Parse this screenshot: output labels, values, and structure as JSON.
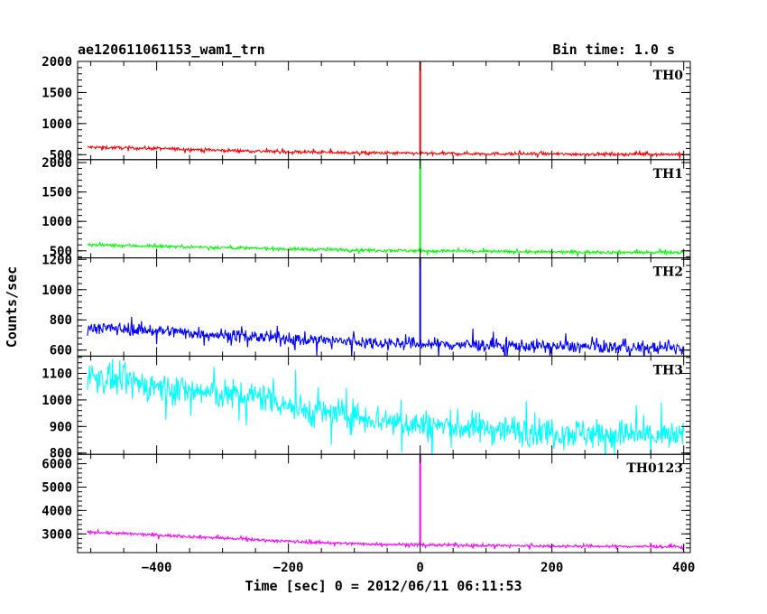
{
  "header": {
    "title": "ae120611061153_wam1_trn",
    "bin_time": "Bin time: 1.0 s"
  },
  "chart_data": {
    "type": "line",
    "xlabel": "Time [sec] 0 = 2012/06/11 06:11:53",
    "ylabel": "Counts/sec",
    "xlim": [
      -520,
      410
    ],
    "xticks": [
      -400,
      -200,
      0,
      200,
      400
    ],
    "x_tick_labels": [
      "−400",
      "−200",
      "0",
      "200",
      "400"
    ],
    "x_range": [
      -505,
      400
    ],
    "trigger_time": 0,
    "panels": [
      {
        "name": "TH0",
        "color": "#ff0000",
        "ylim": [
          420,
          2000
        ],
        "yticks": [
          500,
          1000,
          1500,
          2000
        ],
        "y_tick_labels": [
          "500",
          "1000",
          "1500",
          "2000"
        ],
        "baseline_points": [
          [
            -505,
            620
          ],
          [
            -400,
            600
          ],
          [
            -300,
            570
          ],
          [
            -200,
            545
          ],
          [
            -100,
            530
          ],
          [
            0,
            520
          ],
          [
            200,
            510
          ],
          [
            400,
            505
          ]
        ],
        "noise": 25,
        "spike_peak": 2000
      },
      {
        "name": "TH1",
        "color": "#00ff00",
        "ylim": [
          380,
          2050
        ],
        "yticks": [
          500,
          1000,
          1500,
          2000
        ],
        "y_tick_labels": [
          "500",
          "1000",
          "1500",
          "2000"
        ],
        "baseline_points": [
          [
            -505,
            600
          ],
          [
            -400,
            580
          ],
          [
            -300,
            555
          ],
          [
            -200,
            530
          ],
          [
            -100,
            515
          ],
          [
            0,
            500
          ],
          [
            200,
            480
          ],
          [
            400,
            470
          ]
        ],
        "noise": 25,
        "spike_peak": 2050
      },
      {
        "name": "TH2",
        "color": "#0000ff",
        "ylim": [
          560,
          1210
        ],
        "yticks": [
          600,
          800,
          1000,
          1200
        ],
        "y_tick_labels": [
          "600",
          "800",
          "1000",
          "1200"
        ],
        "baseline_points": [
          [
            -505,
            750
          ],
          [
            -400,
            730
          ],
          [
            -300,
            700
          ],
          [
            -200,
            675
          ],
          [
            -100,
            655
          ],
          [
            0,
            640
          ],
          [
            200,
            625
          ],
          [
            400,
            612
          ]
        ],
        "noise": 40,
        "spike_peak": 1210
      },
      {
        "name": "TH3",
        "color": "#00ffff",
        "ylim": [
          795,
          1165
        ],
        "yticks": [
          800,
          900,
          1000,
          1100
        ],
        "y_tick_labels": [
          "800",
          "900",
          "1000",
          "1100"
        ],
        "baseline_points": [
          [
            -505,
            1090
          ],
          [
            -400,
            1050
          ],
          [
            -300,
            1020
          ],
          [
            -230,
            1010
          ],
          [
            -180,
            960
          ],
          [
            -100,
            940
          ],
          [
            0,
            905
          ],
          [
            200,
            880
          ],
          [
            400,
            860
          ]
        ],
        "noise": 55,
        "spike_peak": null
      },
      {
        "name": "TH0123",
        "color": "#ff00ff",
        "ylim": [
          2200,
          6400
        ],
        "yticks": [
          3000,
          4000,
          5000,
          6000
        ],
        "y_tick_labels": [
          "3000",
          "4000",
          "5000",
          "6000"
        ],
        "baseline_points": [
          [
            -505,
            3080
          ],
          [
            -400,
            2950
          ],
          [
            -300,
            2820
          ],
          [
            -200,
            2680
          ],
          [
            -100,
            2580
          ],
          [
            0,
            2530
          ],
          [
            200,
            2480
          ],
          [
            400,
            2450
          ]
        ],
        "noise": 60,
        "spike_peak": 6400
      }
    ]
  }
}
